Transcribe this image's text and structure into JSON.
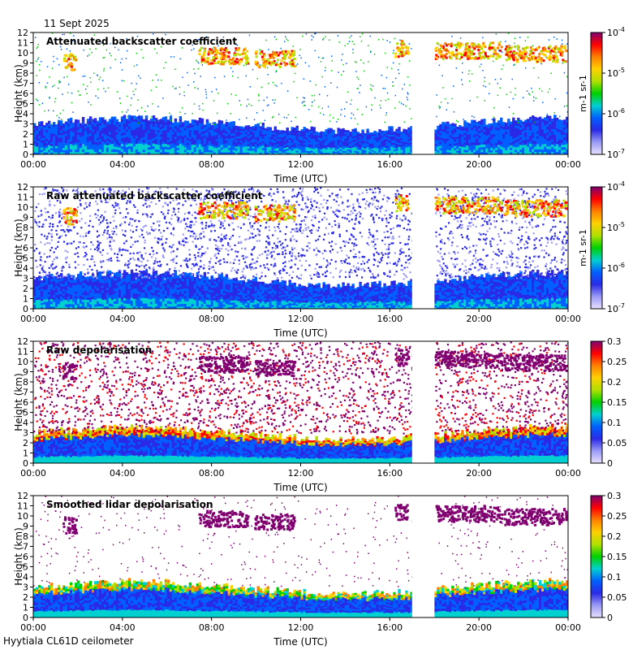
{
  "header": {
    "date": "11 Sept 2025"
  },
  "footer": {
    "site": "Hyytiala CL61D ceilometer"
  },
  "colors": {
    "rainbow": [
      "#e8e0ff",
      "#9a9af5",
      "#2a2ae6",
      "#0060ff",
      "#00d0d0",
      "#00d000",
      "#b0e000",
      "#ffd000",
      "#ff8000",
      "#ff0000",
      "#800070"
    ],
    "background": "#ffffff"
  },
  "chart_data": [
    {
      "type": "heatmap",
      "title": "Attenuated backscatter coefficient",
      "xlabel": "Time (UTC)",
      "ylabel": "Height (km)",
      "x_ticks": [
        "00:00",
        "04:00",
        "08:00",
        "12:00",
        "16:00",
        "20:00",
        "00:00"
      ],
      "xlim_hours": [
        0,
        24
      ],
      "ylim_km": [
        0,
        12
      ],
      "y_ticks": [
        0,
        1,
        2,
        3,
        4,
        5,
        6,
        7,
        8,
        9,
        10,
        11,
        12
      ],
      "colorbar": {
        "scale": "log",
        "ticks": [
          "10^-7",
          "10^-6",
          "10^-5",
          "10^-4"
        ],
        "units": "m^-1 sr^-1"
      },
      "data_gap_hours": [
        17.0,
        18.0
      ]
    },
    {
      "type": "heatmap",
      "title": "Raw attenuated backscatter coefficient",
      "xlabel": "Time (UTC)",
      "ylabel": "Height (km)",
      "x_ticks": [
        "00:00",
        "04:00",
        "08:00",
        "12:00",
        "16:00",
        "20:00",
        "00:00"
      ],
      "xlim_hours": [
        0,
        24
      ],
      "ylim_km": [
        0,
        12
      ],
      "y_ticks": [
        0,
        1,
        2,
        3,
        4,
        5,
        6,
        7,
        8,
        9,
        10,
        11,
        12
      ],
      "colorbar": {
        "scale": "log",
        "ticks": [
          "10^-7",
          "10^-6",
          "10^-5",
          "10^-4"
        ],
        "units": "m^-1 sr^-1"
      },
      "data_gap_hours": [
        17.0,
        18.0
      ]
    },
    {
      "type": "heatmap",
      "title": "Raw depolarisation",
      "xlabel": "Time (UTC)",
      "ylabel": "Height (km)",
      "x_ticks": [
        "00:00",
        "04:00",
        "08:00",
        "12:00",
        "16:00",
        "20:00",
        "00:00"
      ],
      "xlim_hours": [
        0,
        24
      ],
      "ylim_km": [
        0,
        12
      ],
      "y_ticks": [
        0,
        1,
        2,
        3,
        4,
        5,
        6,
        7,
        8,
        9,
        10,
        11,
        12
      ],
      "colorbar": {
        "scale": "linear",
        "ticks": [
          "0",
          "0.05",
          "0.1",
          "0.15",
          "0.2",
          "0.25",
          "0.3"
        ],
        "units": ""
      },
      "data_gap_hours": [
        17.0,
        18.0
      ]
    },
    {
      "type": "heatmap",
      "title": "Smoothed lidar depolarisation",
      "xlabel": "Time (UTC)",
      "ylabel": "Height (km)",
      "x_ticks": [
        "00:00",
        "04:00",
        "08:00",
        "12:00",
        "16:00",
        "20:00",
        "00:00"
      ],
      "xlim_hours": [
        0,
        24
      ],
      "ylim_km": [
        0,
        12
      ],
      "y_ticks": [
        0,
        1,
        2,
        3,
        4,
        5,
        6,
        7,
        8,
        9,
        10,
        11,
        12
      ],
      "colorbar": {
        "scale": "linear",
        "ticks": [
          "0",
          "0.05",
          "0.1",
          "0.15",
          "0.2",
          "0.25",
          "0.3"
        ],
        "units": ""
      },
      "data_gap_hours": [
        17.0,
        18.0
      ]
    }
  ]
}
